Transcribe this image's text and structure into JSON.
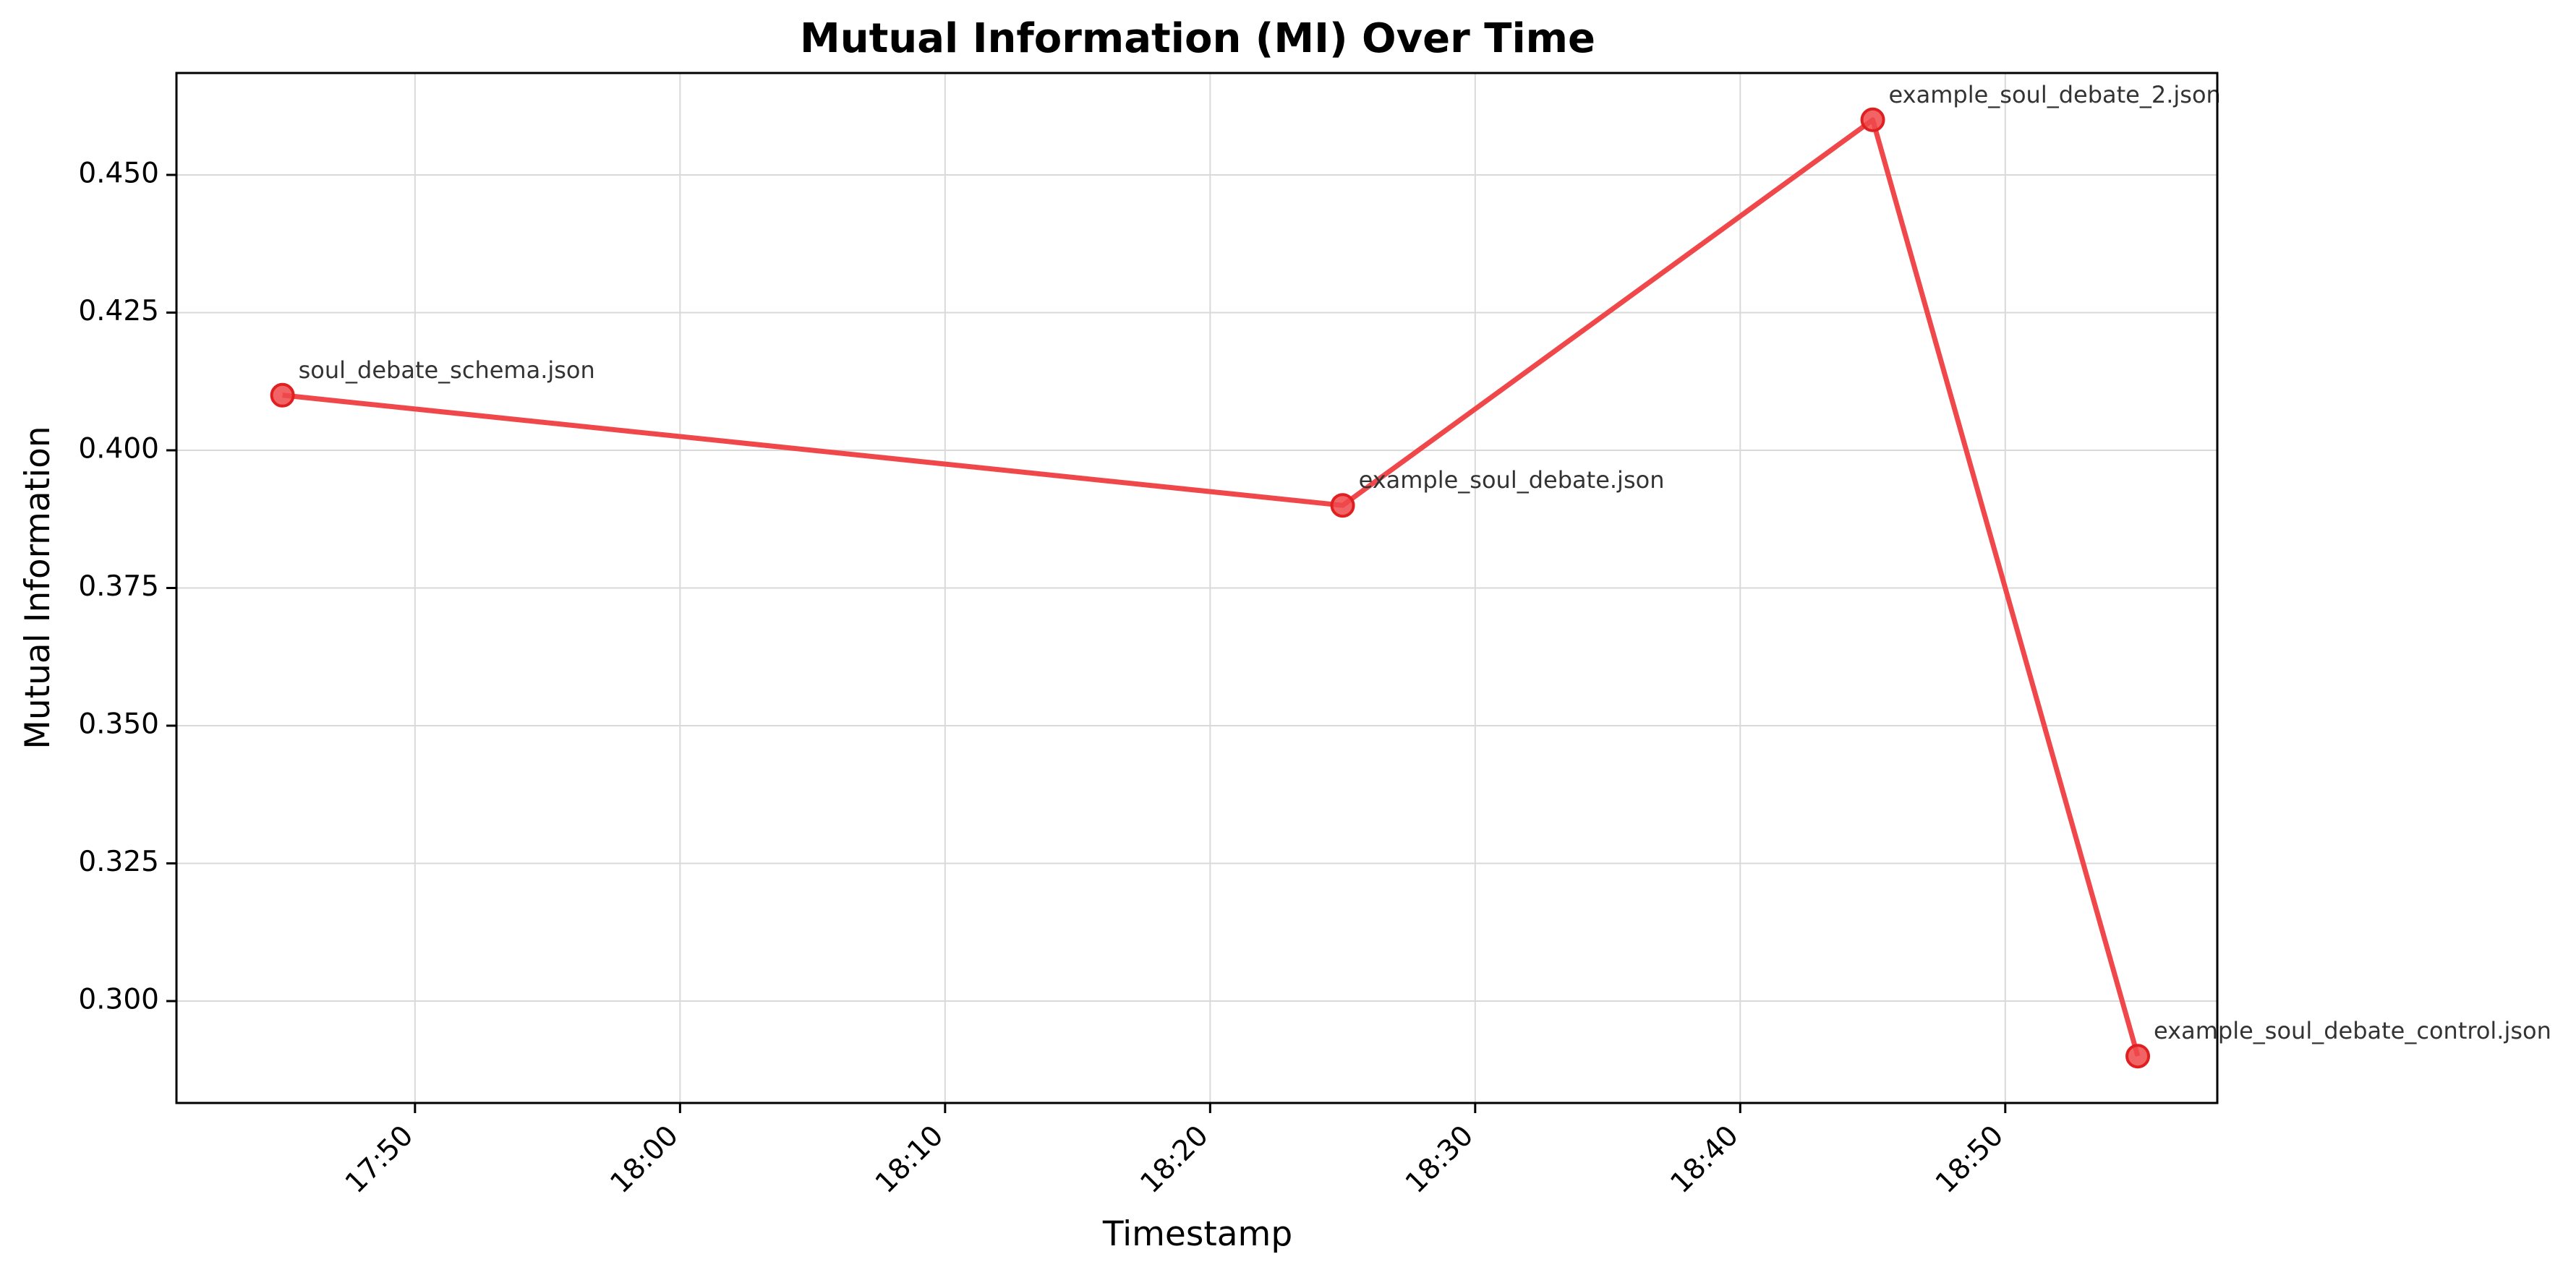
{
  "chart_data": {
    "type": "line",
    "title": "Mutual Information (MI) Over Time",
    "xlabel": "Timestamp",
    "ylabel": "Mutual Information",
    "x_ticks": [
      "17:50",
      "18:00",
      "18:10",
      "18:20",
      "18:30",
      "18:40",
      "18:50"
    ],
    "y_ticks": [
      "0.300",
      "0.325",
      "0.350",
      "0.375",
      "0.400",
      "0.425",
      "0.450"
    ],
    "xlim": [
      "17:41",
      "18:58"
    ],
    "ylim": [
      0.2815,
      0.4685
    ],
    "grid": true,
    "series": [
      {
        "color": "#f0484a",
        "points": [
          {
            "x": "17:45",
            "y": 0.41,
            "label": "soul_debate_schema.json"
          },
          {
            "x": "18:25",
            "y": 0.39,
            "label": "example_soul_debate.json"
          },
          {
            "x": "18:45",
            "y": 0.46,
            "label": "example_soul_debate_2.json"
          },
          {
            "x": "18:55",
            "y": 0.29,
            "label": "example_soul_debate_control.json"
          }
        ]
      }
    ]
  }
}
